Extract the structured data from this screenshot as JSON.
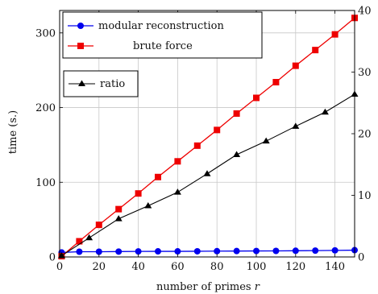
{
  "chart_data": {
    "type": "line",
    "xlabel_text": "number of primes ",
    "xlabel_var": "r",
    "ylabel_left": "time (s.)",
    "ylabel_right": "",
    "xlim": [
      0,
      150
    ],
    "ylim_left": [
      0,
      330
    ],
    "ylim_right": [
      0,
      40
    ],
    "x_ticks": [
      0,
      20,
      40,
      60,
      80,
      100,
      120,
      140
    ],
    "y_ticks_left": [
      0,
      100,
      200,
      300
    ],
    "y_ticks_right": [
      0,
      10,
      20,
      30,
      40
    ],
    "grid": true,
    "colors": {
      "modular": "#0000ee",
      "brute": "#ee0000",
      "ratio": "#000000"
    },
    "series": [
      {
        "name": "modular reconstruction",
        "axis": "left",
        "marker": "circle",
        "x": [
          1,
          10,
          20,
          30,
          40,
          50,
          60,
          70,
          80,
          90,
          100,
          110,
          120,
          130,
          140,
          150
        ],
        "y": [
          6,
          7,
          7,
          7.2,
          7.4,
          7.5,
          7.5,
          7.6,
          7.8,
          7.9,
          8.0,
          8.1,
          8.3,
          8.5,
          8.8,
          9.1
        ]
      },
      {
        "name": "brute force",
        "axis": "left",
        "marker": "square",
        "x": [
          1,
          10,
          20,
          30,
          40,
          50,
          60,
          70,
          80,
          90,
          100,
          110,
          120,
          130,
          140,
          150
        ],
        "y": [
          1,
          21,
          43,
          64,
          85,
          107,
          128,
          149,
          170,
          192,
          213,
          234,
          256,
          277,
          298,
          320
        ]
      },
      {
        "name": "ratio",
        "axis": "right",
        "marker": "triangle",
        "x": [
          1,
          15,
          30,
          45,
          60,
          75,
          90,
          105,
          120,
          135,
          150
        ],
        "y": [
          0.2,
          3.1,
          6.2,
          8.3,
          10.5,
          13.5,
          16.6,
          18.8,
          21.2,
          23.5,
          26.4
        ]
      }
    ],
    "legend_main": [
      "modular reconstruction",
      "brute force"
    ],
    "legend_ratio": [
      "ratio"
    ]
  }
}
